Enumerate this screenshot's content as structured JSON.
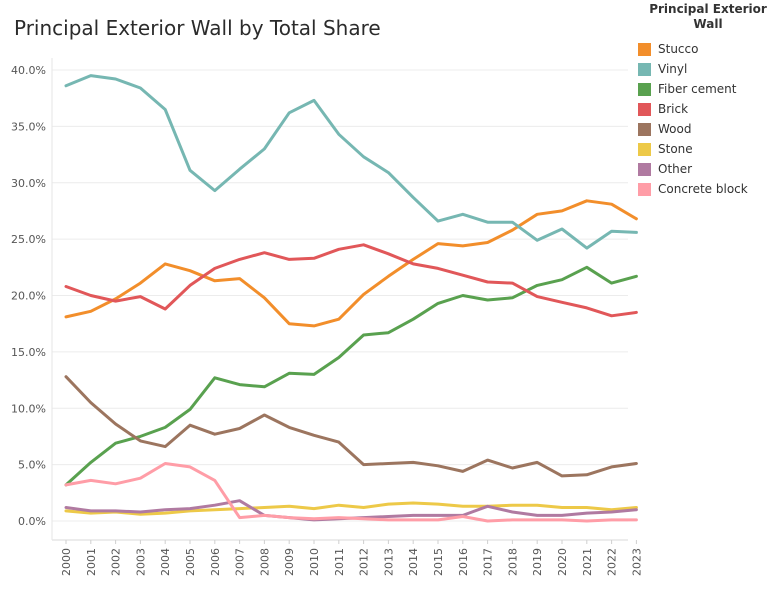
{
  "chart_data": {
    "type": "line",
    "title": "Principal Exterior Wall by Total Share",
    "legend_title": "Principal Exterior Wall",
    "legend_position": "right",
    "grid": true,
    "x": [
      "2000",
      "2001",
      "2002",
      "2003",
      "2004",
      "2005",
      "2006",
      "2007",
      "2008",
      "2009",
      "2010",
      "2011",
      "2012",
      "2013",
      "2014",
      "2015",
      "2016",
      "2017",
      "2018",
      "2019",
      "2020",
      "2021",
      "2022",
      "2023"
    ],
    "ylim": [
      0,
      40
    ],
    "yticks": [
      "0.0%",
      "5.0%",
      "10.0%",
      "15.0%",
      "20.0%",
      "25.0%",
      "30.0%",
      "35.0%",
      "40.0%"
    ],
    "ytick_values": [
      0,
      5,
      10,
      15,
      20,
      25,
      30,
      35,
      40
    ],
    "series": [
      {
        "name": "Stucco",
        "color": "#f28e2b",
        "values": [
          18.1,
          18.6,
          19.7,
          21.1,
          22.8,
          22.2,
          21.3,
          21.5,
          19.8,
          17.5,
          17.3,
          17.9,
          20.1,
          21.7,
          23.2,
          24.6,
          24.4,
          24.7,
          25.8,
          27.2,
          27.5,
          28.4,
          28.1,
          26.8
        ]
      },
      {
        "name": "Vinyl",
        "color": "#76b7b2",
        "values": [
          38.6,
          39.5,
          39.2,
          38.4,
          36.5,
          31.1,
          29.3,
          31.2,
          33.0,
          36.2,
          37.3,
          34.3,
          32.3,
          30.9,
          28.7,
          26.6,
          27.2,
          26.5,
          26.5,
          24.9,
          25.9,
          24.2,
          25.7,
          25.6
        ]
      },
      {
        "name": "Fiber cement",
        "color": "#59a14f",
        "values": [
          3.2,
          5.2,
          6.9,
          7.5,
          8.3,
          9.9,
          12.7,
          12.1,
          11.9,
          13.1,
          13.0,
          14.5,
          16.5,
          16.7,
          17.9,
          19.3,
          20.0,
          19.6,
          19.8,
          20.9,
          21.4,
          22.5,
          21.1,
          21.7
        ]
      },
      {
        "name": "Brick",
        "color": "#e15759",
        "values": [
          20.8,
          20.0,
          19.5,
          19.9,
          18.8,
          20.9,
          22.4,
          23.2,
          23.8,
          23.2,
          23.3,
          24.1,
          24.5,
          23.7,
          22.8,
          22.4,
          21.8,
          21.2,
          21.1,
          19.9,
          19.4,
          18.9,
          18.2,
          18.5
        ]
      },
      {
        "name": "Wood",
        "color": "#9c755f",
        "values": [
          12.8,
          10.5,
          8.6,
          7.1,
          6.6,
          8.5,
          7.7,
          8.2,
          9.4,
          8.3,
          7.6,
          7.0,
          5.0,
          5.1,
          5.2,
          4.9,
          4.4,
          5.4,
          4.7,
          5.2,
          4.0,
          4.1,
          4.8,
          5.1
        ]
      },
      {
        "name": "Stone",
        "color": "#edc948",
        "values": [
          0.9,
          0.7,
          0.8,
          0.6,
          0.7,
          0.9,
          1.0,
          1.1,
          1.2,
          1.3,
          1.1,
          1.4,
          1.2,
          1.5,
          1.6,
          1.5,
          1.3,
          1.3,
          1.4,
          1.4,
          1.2,
          1.2,
          1.0,
          1.2
        ]
      },
      {
        "name": "Other",
        "color": "#b07aa1",
        "values": [
          1.2,
          0.9,
          0.9,
          0.8,
          1.0,
          1.1,
          1.4,
          1.8,
          0.5,
          0.3,
          0.1,
          0.2,
          0.3,
          0.4,
          0.5,
          0.5,
          0.5,
          1.3,
          0.8,
          0.5,
          0.5,
          0.7,
          0.8,
          1.0
        ]
      },
      {
        "name": "Concrete block",
        "color": "#ff9da7",
        "values": [
          3.2,
          3.6,
          3.3,
          3.8,
          5.1,
          4.8,
          3.6,
          0.3,
          0.5,
          0.3,
          0.2,
          0.3,
          0.2,
          0.1,
          0.1,
          0.1,
          0.4,
          0.0,
          0.1,
          0.1,
          0.1,
          0.0,
          0.1,
          0.1
        ]
      }
    ]
  }
}
